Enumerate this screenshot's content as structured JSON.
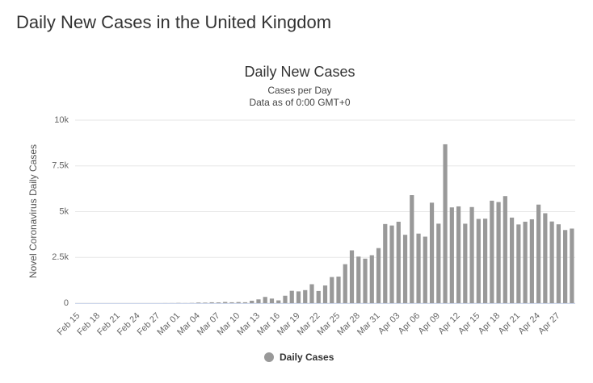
{
  "page_title": "Daily New Cases in the United Kingdom",
  "chart_data": {
    "type": "bar",
    "title": "Daily New Cases",
    "subtitle": "Cases per Day",
    "subtitle2": "Data as of 0:00 GMT+0",
    "y_label": "Novel Coronavirus Daily Cases",
    "categories": [
      "Feb 15",
      null,
      null,
      "Feb 18",
      null,
      null,
      "Feb 21",
      null,
      null,
      "Feb 24",
      null,
      null,
      "Feb 27",
      null,
      null,
      "Mar 01",
      null,
      null,
      "Mar 04",
      null,
      null,
      "Mar 07",
      null,
      null,
      "Mar 10",
      null,
      null,
      "Mar 13",
      null,
      null,
      "Mar 16",
      null,
      null,
      "Mar 19",
      null,
      null,
      "Mar 22",
      null,
      null,
      "Mar 25",
      null,
      null,
      "Mar 28",
      null,
      null,
      "Mar 31",
      null,
      null,
      "Apr 03",
      null,
      null,
      "Apr 06",
      null,
      null,
      "Apr 09",
      null,
      null,
      "Apr 12",
      null,
      null,
      "Apr 15",
      null,
      null,
      "Apr 18",
      null,
      null,
      "Apr 21",
      null,
      null,
      "Apr 24",
      null,
      null,
      "Apr 27",
      null,
      null
    ],
    "series": [
      {
        "name": "Daily Cases",
        "color": "#999999",
        "values": [
          0,
          0,
          0,
          0,
          0,
          0,
          0,
          0,
          0,
          0,
          0,
          0,
          0,
          3,
          4,
          12,
          4,
          11,
          34,
          30,
          48,
          43,
          67,
          48,
          61,
          50,
          134,
          208,
          342,
          251,
          152,
          407,
          676,
          643,
          714,
          1035,
          665,
          967,
          1427,
          1452,
          2129,
          2885,
          2546,
          2433,
          2619,
          3009,
          4324,
          4244,
          4450,
          3735,
          5903,
          3802,
          3634,
          5491,
          4344,
          8681,
          5233,
          5288,
          4342,
          5252,
          4603,
          4617,
          5599,
          5525,
          5850,
          4676,
          4301,
          4451,
          4583,
          5386,
          4913,
          4463,
          4309,
          3996,
          4076
        ]
      }
    ],
    "ylim": [
      0,
      10000
    ],
    "yticks": [
      0,
      {
        "value": 2500,
        "label": "2.5k"
      },
      {
        "value": 5000,
        "label": "5k"
      },
      {
        "value": 7500,
        "label": "7.5k"
      },
      {
        "value": 10000,
        "label": "10k"
      }
    ],
    "grid": true
  }
}
